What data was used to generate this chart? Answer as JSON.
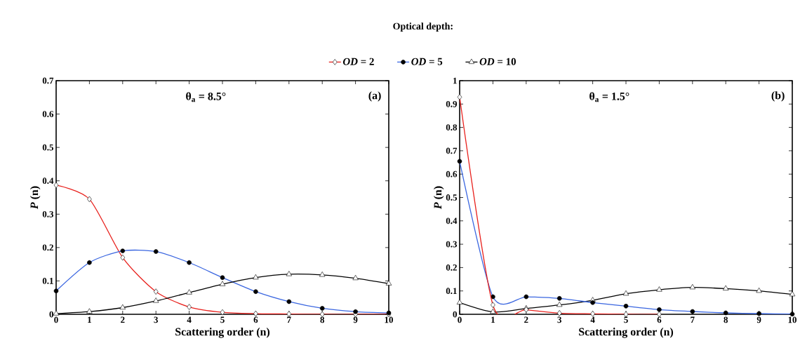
{
  "chart_data": [
    {
      "type": "line",
      "xlabel": "Scattering order (n)",
      "ylabel": "*P* (n)",
      "legend_title": "Optical depth:",
      "legend": "top",
      "line_style": "solid",
      "grid": false,
      "annotations": [
        "θ$_{a}$ = 8.5°",
        "(a)"
      ],
      "x": [
        0,
        1,
        2,
        3,
        4,
        5,
        6,
        7,
        8,
        9,
        10
      ],
      "xlim": [
        0,
        10
      ],
      "xticks": [
        0,
        1,
        2,
        3,
        4,
        5,
        6,
        7,
        8,
        9,
        10
      ],
      "ylim": [
        0,
        0.7
      ],
      "yticks": [
        0,
        0.1,
        0.2,
        0.3,
        0.4,
        0.5,
        0.6,
        0.7
      ],
      "series": [
        {
          "name": "*OD* = 2",
          "color": "#e8201c",
          "marker": "diamond",
          "values": [
            0.387,
            0.345,
            0.17,
            0.068,
            0.022,
            0.006,
            0.002,
            0.001,
            0,
            0,
            0
          ]
        },
        {
          "name": "*OD* = 5",
          "color": "#3a66e0",
          "marker": "circle",
          "values": [
            0.07,
            0.155,
            0.19,
            0.188,
            0.155,
            0.11,
            0.068,
            0.038,
            0.018,
            0.008,
            0.004
          ]
        },
        {
          "name": "*OD* = 10",
          "color": "#000000",
          "marker": "triangle",
          "values": [
            0.002,
            0.008,
            0.02,
            0.04,
            0.065,
            0.09,
            0.11,
            0.12,
            0.118,
            0.108,
            0.092
          ]
        }
      ]
    },
    {
      "type": "line",
      "xlabel": "Scattering order (n)",
      "ylabel": "*P* (n)",
      "line_style": "solid",
      "grid": false,
      "annotations": [
        "θ$_{a}$ = 1.5°",
        "(b)"
      ],
      "x": [
        0,
        1,
        2,
        3,
        4,
        5,
        6,
        7,
        8,
        9,
        10
      ],
      "xlim": [
        0,
        10
      ],
      "xticks": [
        0,
        1,
        2,
        3,
        4,
        5,
        6,
        7,
        8,
        9,
        10
      ],
      "ylim": [
        0,
        1
      ],
      "yticks": [
        0,
        0.1,
        0.2,
        0.3,
        0.4,
        0.5,
        0.6,
        0.7,
        0.8,
        0.9,
        1
      ],
      "series": [
        {
          "color": "#000000",
          "marker": "triangle",
          "values": [
            0.05,
            0.01,
            0.025,
            0.04,
            0.06,
            0.088,
            0.105,
            0.115,
            0.11,
            0.1,
            0.085
          ]
        },
        {
          "color": "#3a66e0",
          "marker": "circle",
          "values": [
            0.655,
            0.075,
            0.075,
            0.068,
            0.05,
            0.035,
            0.02,
            0.012,
            0.006,
            0.003,
            0.001
          ]
        },
        {
          "color": "#e8201c",
          "marker": "diamond",
          "values": [
            0.93,
            0.04,
            0.02,
            0.005,
            0.002,
            0,
            0,
            null,
            null,
            null,
            null
          ]
        }
      ]
    }
  ]
}
